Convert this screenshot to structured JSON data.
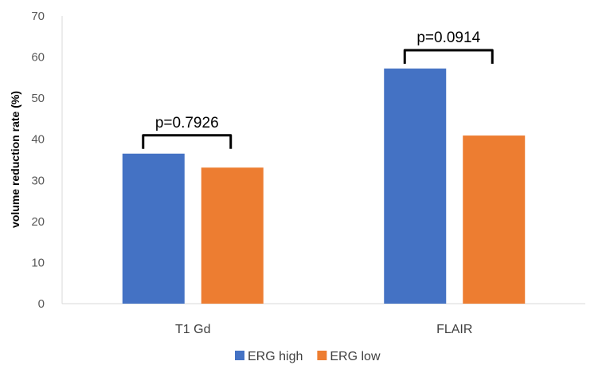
{
  "chart_data": {
    "type": "bar",
    "categories": [
      "T1 Gd",
      "FLAIR"
    ],
    "series": [
      {
        "name": "ERG high",
        "color": "#4472C4",
        "values": [
          36.5,
          57.2
        ]
      },
      {
        "name": "ERG low",
        "color": "#ED7D31",
        "values": [
          33.1,
          40.9
        ]
      }
    ],
    "ylabel": "volume reduction rate (%)",
    "xlabel": "",
    "ylim": [
      0,
      70
    ],
    "yticks": [
      0,
      10,
      20,
      30,
      40,
      50,
      60,
      70
    ],
    "grid": false,
    "legend": "bottom",
    "annotations": [
      {
        "category": "T1 Gd",
        "text": "p=0.7926"
      },
      {
        "category": "FLAIR",
        "text": "p=0.0914"
      }
    ]
  }
}
